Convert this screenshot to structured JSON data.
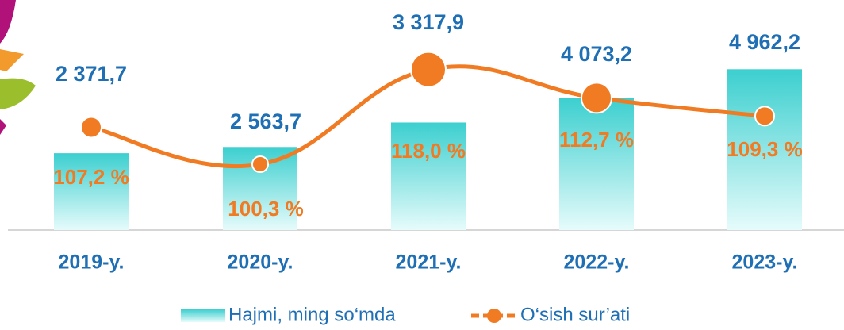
{
  "chart_data": {
    "type": "bar-line",
    "categories": [
      "2019-y.",
      "2020-y.",
      "2021-y.",
      "2022-y.",
      "2023-y."
    ],
    "series": [
      {
        "name": "Hajmi, ming so‘mda",
        "color": "#3ccfcf",
        "type": "bar",
        "values": [
          2371.7,
          2563.7,
          3317.9,
          4073.2,
          4962.2
        ],
        "value_labels": [
          "2 371,7",
          "2 563,7",
          "3 317,9",
          "4 073,2",
          "4 962,2"
        ]
      },
      {
        "name": "O‘sish sur’ati",
        "color": "#f07b22",
        "type": "line",
        "axis": "y2",
        "values": [
          107.2,
          100.3,
          118.0,
          112.7,
          109.3
        ],
        "value_labels": [
          "107,2 %",
          "100,3 %",
          "118,0 %",
          "112,7 %",
          "109,3 %"
        ]
      }
    ],
    "ylim": [
      0,
      7100
    ],
    "y2lim": [
      88,
      131
    ]
  }
}
